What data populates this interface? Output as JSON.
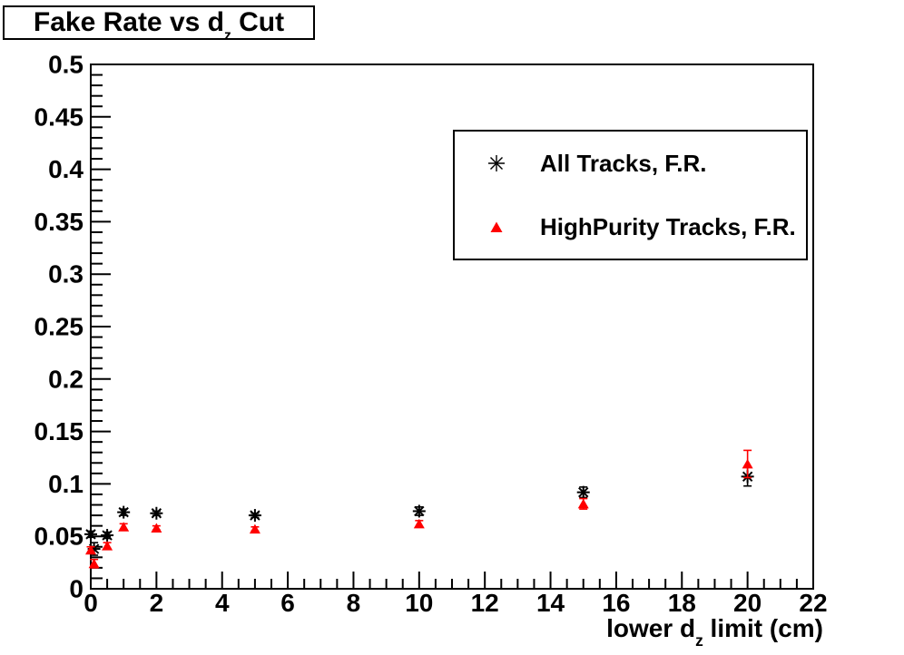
{
  "title": {
    "prefix": "Fake Rate vs d",
    "subscript": "z",
    "suffix": " Cut"
  },
  "x_axis_title": {
    "prefix": "lower d",
    "subscript": "z",
    "suffix": " limit (cm)"
  },
  "colors": {
    "series1": "#000000",
    "series2": "#ff0000",
    "frame": "#000000",
    "background": "#ffffff"
  },
  "legend": {
    "items": [
      {
        "label": "All Tracks, F.R.",
        "marker": "asterisk-marker",
        "color": "#000000"
      },
      {
        "label": "HighPurity Tracks, F.R.",
        "marker": "triangle-marker",
        "color": "#ff0000"
      }
    ]
  },
  "chart_data": {
    "type": "scatter",
    "x": [
      0,
      0.1,
      0.5,
      1,
      2,
      5,
      10,
      15,
      20
    ],
    "series": [
      {
        "name": "All Tracks, F.R.",
        "marker": "asterisk",
        "color": "#000000",
        "values": [
          0.052,
          0.038,
          0.051,
          0.073,
          0.072,
          0.07,
          0.074,
          0.092,
          0.107
        ],
        "yerr": [
          0.003,
          0.006,
          0.003,
          0.003,
          0.002,
          0.002,
          0.004,
          0.005,
          0.009
        ]
      },
      {
        "name": "HighPurity Tracks, F.R.",
        "marker": "triangle-filled",
        "color": "#ff0000",
        "values": [
          0.037,
          0.024,
          0.041,
          0.059,
          0.058,
          0.057,
          0.062,
          0.081,
          0.119
        ],
        "yerr": [
          0.003,
          0.004,
          0.003,
          0.003,
          0.002,
          0.002,
          0.003,
          0.005,
          0.013
        ]
      }
    ],
    "xlim": [
      0,
      22
    ],
    "ylim": [
      0,
      0.5
    ],
    "x_ticks": [
      0,
      2,
      4,
      6,
      8,
      10,
      12,
      14,
      16,
      18,
      20,
      22
    ],
    "x_minor_step": 0.5,
    "y_ticks": [
      0,
      0.05,
      0.1,
      0.15,
      0.2,
      0.25,
      0.3,
      0.35,
      0.4,
      0.45,
      0.5
    ],
    "y_tick_labels": [
      "0",
      "0.05",
      "0.1",
      "0.15",
      "0.2",
      "0.25",
      "0.3",
      "0.35",
      "0.4",
      "0.45",
      "0.5"
    ],
    "y_minor_step": 0.01,
    "grid": false,
    "legend_position": "upper right"
  }
}
